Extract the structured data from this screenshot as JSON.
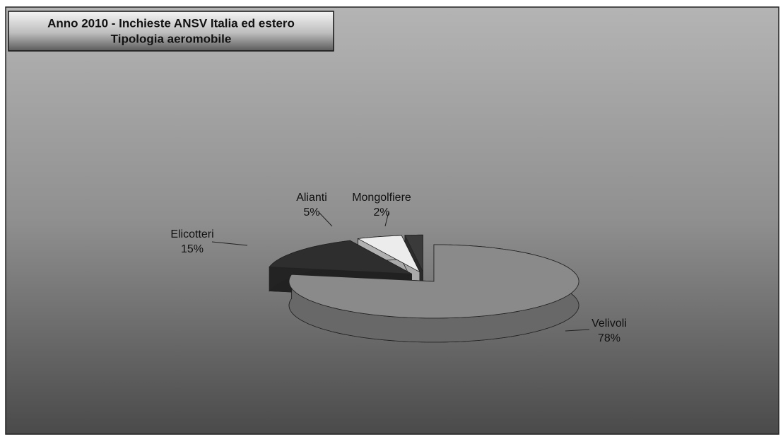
{
  "chart_data": {
    "type": "pie",
    "title": "Anno 2010 - Inchieste ANSV Italia ed estero",
    "subtitle": "Tipologia aeromobile",
    "categories": [
      "Velivoli",
      "Elicotteri",
      "Alianti",
      "Mongolfiere"
    ],
    "values": [
      78,
      15,
      5,
      2
    ],
    "value_labels": [
      "78%",
      "15%",
      "5%",
      "2%"
    ],
    "colors": [
      "#8a8a8a",
      "#2e2e2e",
      "#ececec",
      "#3a3a3a"
    ]
  }
}
